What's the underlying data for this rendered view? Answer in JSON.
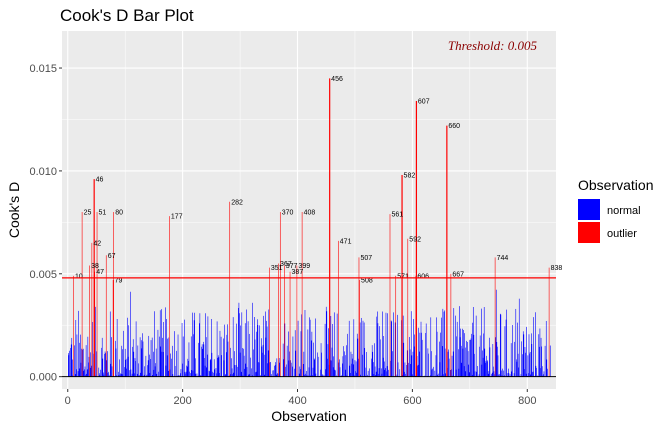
{
  "chart_data": {
    "type": "bar",
    "title": "Cook's D Bar Plot",
    "xlabel": "Observation",
    "ylabel": "Cook's D",
    "xlim": [
      -10,
      850
    ],
    "ylim": [
      -0.0006,
      0.0168
    ],
    "x_ticks": [
      0,
      200,
      400,
      600,
      800
    ],
    "y_ticks": [
      0.0,
      0.005,
      0.01,
      0.015
    ],
    "y_tick_labels": [
      "0.000",
      "0.005",
      "0.010",
      "0.015"
    ],
    "x_tick_labels": [
      "0",
      "200",
      "400",
      "600",
      "800"
    ],
    "threshold": 0.0048,
    "threshold_label": "Threshold: 0.005",
    "colors": {
      "normal": "#0000ff",
      "outlier": "#ff0000",
      "panel": "#ebebeb",
      "threshold_text": "#8b0000"
    },
    "legend": {
      "title": "Observation",
      "placement": "right",
      "entries": [
        "normal",
        "outlier"
      ]
    },
    "outliers": [
      {
        "x": 10,
        "y": 0.0049
      },
      {
        "x": 25,
        "y": 0.008
      },
      {
        "x": 38,
        "y": 0.0054
      },
      {
        "x": 42,
        "y": 0.0065
      },
      {
        "x": 46,
        "y": 0.0096
      },
      {
        "x": 47,
        "y": 0.0051
      },
      {
        "x": 51,
        "y": 0.008
      },
      {
        "x": 67,
        "y": 0.0059
      },
      {
        "x": 79,
        "y": 0.0047
      },
      {
        "x": 80,
        "y": 0.008
      },
      {
        "x": 177,
        "y": 0.0078
      },
      {
        "x": 282,
        "y": 0.0085
      },
      {
        "x": 351,
        "y": 0.0053
      },
      {
        "x": 367,
        "y": 0.0055
      },
      {
        "x": 370,
        "y": 0.008
      },
      {
        "x": 377,
        "y": 0.0054
      },
      {
        "x": 387,
        "y": 0.0051
      },
      {
        "x": 399,
        "y": 0.0054
      },
      {
        "x": 408,
        "y": 0.008
      },
      {
        "x": 456,
        "y": 0.0145
      },
      {
        "x": 471,
        "y": 0.0066
      },
      {
        "x": 507,
        "y": 0.0058
      },
      {
        "x": 508,
        "y": 0.0047
      },
      {
        "x": 561,
        "y": 0.0079
      },
      {
        "x": 571,
        "y": 0.0049
      },
      {
        "x": 582,
        "y": 0.0098
      },
      {
        "x": 592,
        "y": 0.0067
      },
      {
        "x": 606,
        "y": 0.0049
      },
      {
        "x": 607,
        "y": 0.0134
      },
      {
        "x": 660,
        "y": 0.0122
      },
      {
        "x": 667,
        "y": 0.005
      },
      {
        "x": 744,
        "y": 0.0058
      },
      {
        "x": 838,
        "y": 0.0053
      }
    ],
    "normal_bars_note_values": {
      "n": 840,
      "max": 0.0044
    }
  }
}
